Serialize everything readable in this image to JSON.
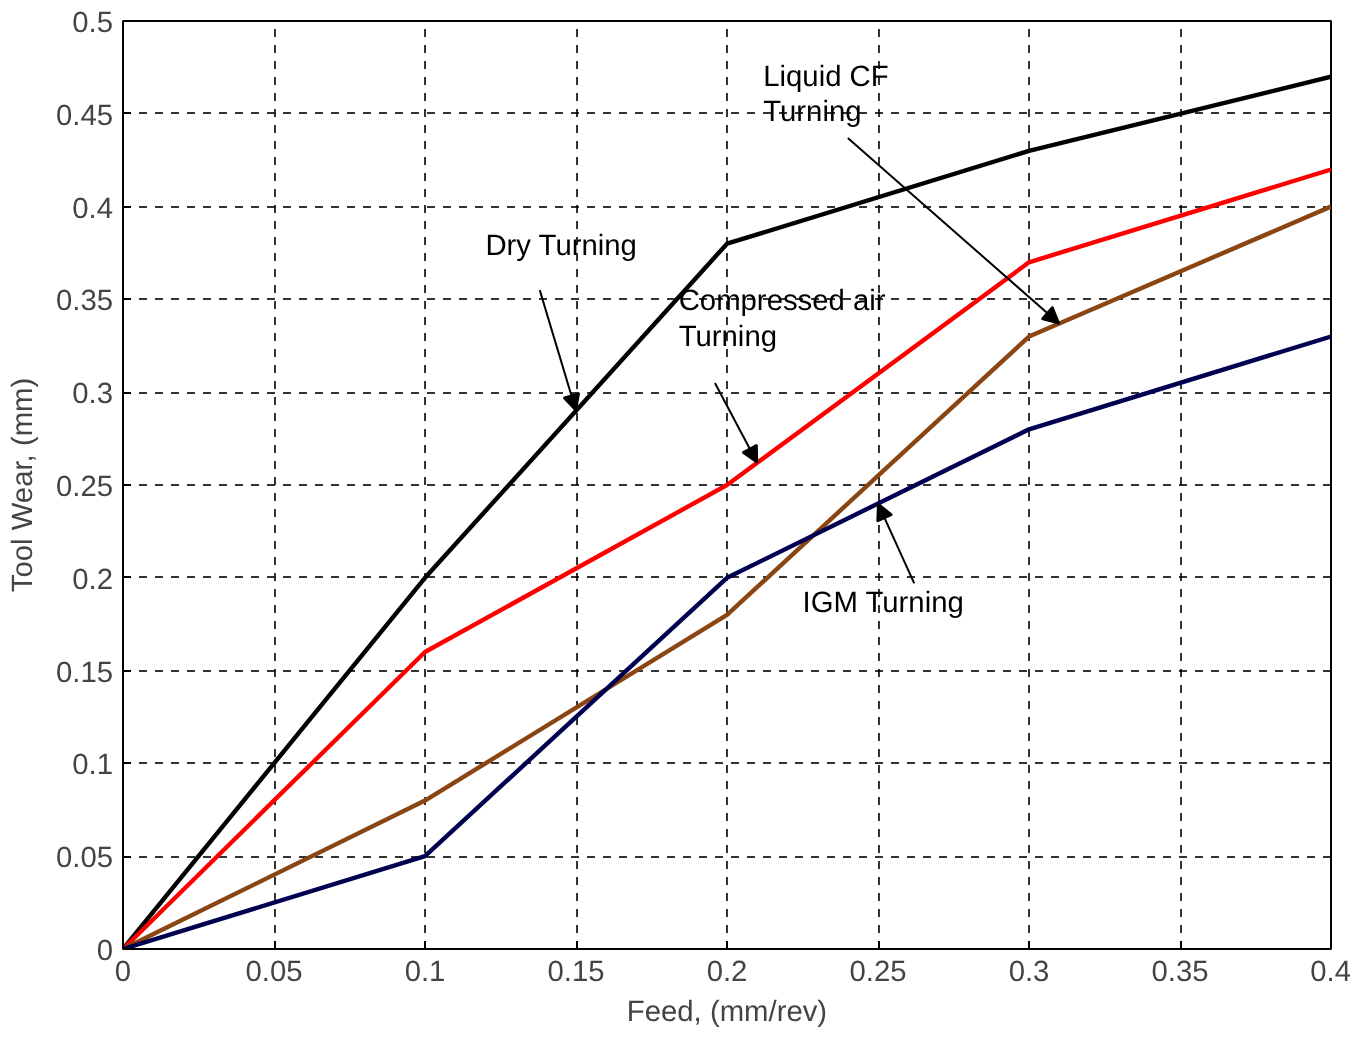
{
  "chart_data": {
    "type": "line",
    "xlabel": "Feed, (mm/rev)",
    "ylabel": "Tool Wear, (mm)",
    "x": [
      0,
      0.1,
      0.2,
      0.3,
      0.4
    ],
    "series": [
      {
        "color": "#000000",
        "values": [
          0,
          0.2,
          0.38,
          0.43,
          0.47
        ]
      },
      {
        "color": "#ff0000",
        "values": [
          0,
          0.16,
          0.25,
          0.37,
          0.42
        ]
      },
      {
        "color": "#8b4513",
        "values": [
          0,
          0.08,
          0.18,
          0.33,
          0.4
        ]
      },
      {
        "color": "#000050",
        "values": [
          0,
          0.05,
          0.2,
          0.28,
          0.33
        ]
      }
    ],
    "xlim": [
      0,
      0.4
    ],
    "ylim": [
      0,
      0.5
    ],
    "xticks": [
      0,
      0.05,
      0.1,
      0.15,
      0.2,
      0.25,
      0.3,
      0.35,
      0.4
    ],
    "yticks": [
      0,
      0.05,
      0.1,
      0.15,
      0.2,
      0.25,
      0.3,
      0.35,
      0.4,
      0.45,
      0.5
    ],
    "grid": true,
    "line_style": "solid",
    "annotations": [
      {
        "text": "Dry Turning",
        "x": 0.15,
        "y": 0.29
      },
      {
        "text": "Compressed air\nTurning",
        "x": 0.21,
        "y": 0.262
      },
      {
        "text": "Liquid CF\nTurning",
        "x": 0.31,
        "y": 0.337
      },
      {
        "text": "IGM Turning",
        "x": 0.25,
        "y": 0.24
      }
    ]
  }
}
